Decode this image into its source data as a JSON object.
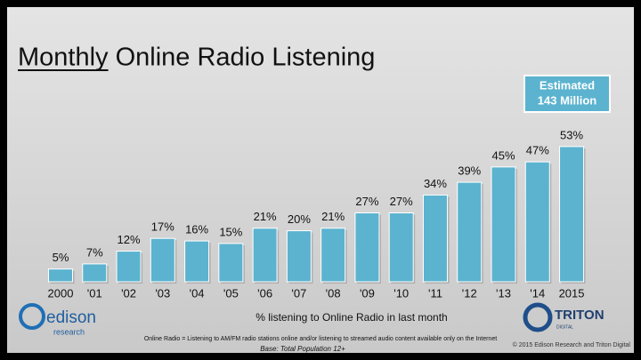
{
  "chart_data": {
    "type": "bar",
    "title": "Monthly Online Radio Listening",
    "categories": [
      "2000",
      "'01",
      "'02",
      "'03",
      "'04",
      "'05",
      "'06",
      "'07",
      "'08",
      "'09",
      "'10",
      "'11",
      "'12",
      "'13",
      "'14",
      "2015"
    ],
    "values": [
      5,
      7,
      12,
      17,
      16,
      15,
      21,
      20,
      21,
      27,
      27,
      34,
      39,
      45,
      47,
      53
    ],
    "value_labels": [
      "5%",
      "7%",
      "12%",
      "17%",
      "16%",
      "15%",
      "21%",
      "20%",
      "21%",
      "27%",
      "27%",
      "34%",
      "39%",
      "45%",
      "47%",
      "53%"
    ],
    "color": "#5bb3cf",
    "x_label": "% listening to Online Radio in last month",
    "callout": [
      "Estimated",
      "143 Million"
    ],
    "footnote": "Online Radio = Listening to AM/FM radio stations online and/or listening to streamed audio content available only on the Internet",
    "base": "Base: Total Population 12+",
    "copyright": "© 2015 Edison Research and Triton Digital",
    "logos": {
      "edison": "edison",
      "research": "research",
      "triton": "TRITON",
      "digital": "DIGITAL"
    }
  }
}
